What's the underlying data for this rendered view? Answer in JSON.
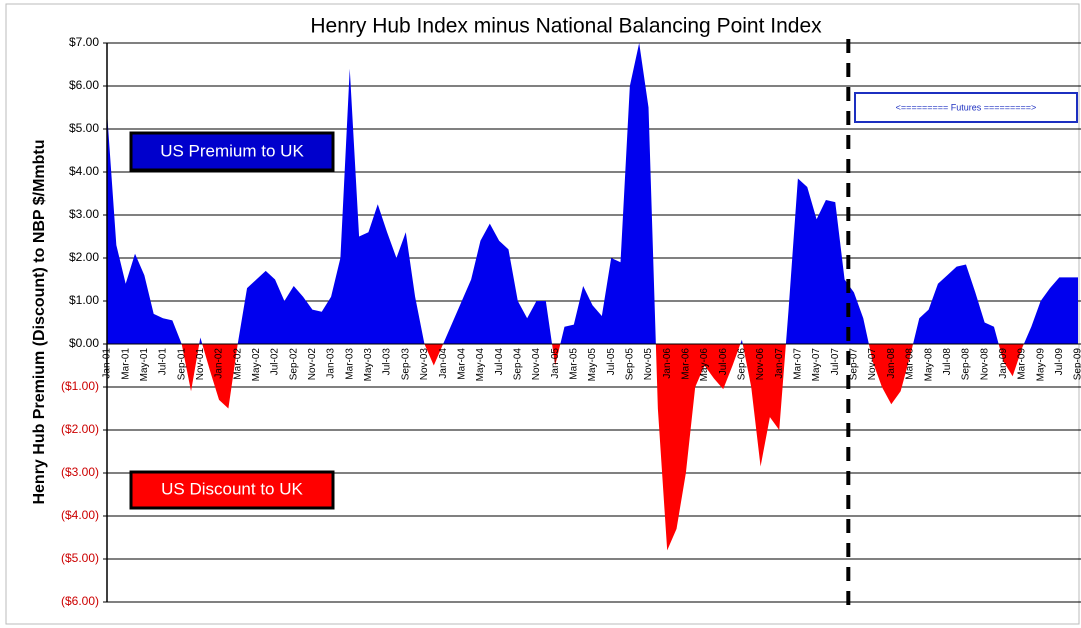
{
  "chart_data": {
    "type": "area",
    "title": "Henry Hub Index minus National Balancing Point Index",
    "y_label": "Henry Hub Premium (Discount) to NBP $/Mmbtu",
    "categories": [
      "Jan-01",
      null,
      "Mar-01",
      null,
      "May-01",
      null,
      "Jul-01",
      null,
      "Sep-01",
      null,
      "Nov-01",
      null,
      "Jan-02",
      null,
      "Mar-02",
      null,
      "May-02",
      null,
      "Jul-02",
      null,
      "Sep-02",
      null,
      "Nov-02",
      null,
      "Jan-03",
      null,
      "Mar-03",
      null,
      "May-03",
      null,
      "Jul-03",
      null,
      "Sep-03",
      null,
      "Nov-03",
      null,
      "Jan-04",
      null,
      "Mar-04",
      null,
      "May-04",
      null,
      "Jul-04",
      null,
      "Sep-04",
      null,
      "Nov-04",
      null,
      "Jan-05",
      null,
      "Mar-05",
      null,
      "May-05",
      null,
      "Jul-05",
      null,
      "Sep-05",
      null,
      "Nov-05",
      null,
      "Jan-06",
      null,
      "Mar-06",
      null,
      "May-06",
      null,
      "Jul-06",
      null,
      "Sep-06",
      null,
      "Nov-06",
      null,
      "Jan-07",
      null,
      "Mar-07",
      null,
      "May-07",
      null,
      "Jul-07",
      null,
      "Sep-07",
      null,
      "Nov-07",
      null,
      "Jan-08",
      null,
      "Mar-08",
      null,
      "May-08",
      null,
      "Jul-08",
      null,
      "Sep-08",
      null,
      "Nov-08",
      null,
      "Jan-09",
      null,
      "Mar-09",
      null,
      "May-09",
      null,
      "Jul-09",
      null,
      "Sep-09"
    ],
    "values": [
      5.4,
      2.3,
      1.4,
      2.1,
      1.6,
      0.7,
      0.6,
      0.55,
      0.0,
      -1.1,
      0.15,
      -0.6,
      -1.3,
      -1.5,
      0.0,
      1.3,
      1.5,
      1.7,
      1.5,
      1.0,
      1.35,
      1.1,
      0.8,
      0.75,
      1.1,
      2.0,
      6.4,
      2.5,
      2.6,
      3.25,
      2.6,
      2.0,
      2.6,
      1.1,
      0.0,
      -0.5,
      0.0,
      0.5,
      1.0,
      1.5,
      2.4,
      2.8,
      2.4,
      2.2,
      1.0,
      0.6,
      1.0,
      1.0,
      -0.5,
      0.4,
      0.45,
      1.35,
      0.9,
      0.65,
      2.0,
      1.9,
      6.0,
      7.0,
      5.5,
      -1.5,
      -4.8,
      -4.3,
      -3.0,
      -1.0,
      -0.5,
      -0.8,
      -1.05,
      -0.5,
      0.1,
      -1.0,
      -2.85,
      -1.7,
      -2.0,
      0.8,
      3.85,
      3.65,
      2.9,
      3.35,
      3.3,
      1.5,
      1.2,
      0.6,
      -0.4,
      -1.0,
      -1.4,
      -1.1,
      -0.3,
      0.6,
      0.8,
      1.4,
      1.6,
      1.8,
      1.85,
      1.2,
      0.5,
      0.4,
      -0.4,
      -0.75,
      -0.1,
      0.4,
      1.0,
      1.3,
      1.55,
      1.55,
      1.55
    ],
    "positive_color": "#0000ee",
    "negative_color": "#ff0000",
    "negative_label_color": "#cc0000",
    "ylim": [
      -6,
      7
    ],
    "yticks": [
      {
        "value": 7,
        "label": "$7.00"
      },
      {
        "value": 6,
        "label": "$6.00"
      },
      {
        "value": 5,
        "label": "$5.00"
      },
      {
        "value": 4,
        "label": "$4.00"
      },
      {
        "value": 3,
        "label": "$3.00"
      },
      {
        "value": 2,
        "label": "$2.00"
      },
      {
        "value": 1,
        "label": "$1.00"
      },
      {
        "value": 0,
        "label": "$0.00"
      },
      {
        "value": -1,
        "label": "($1.00)"
      },
      {
        "value": -2,
        "label": "($2.00)"
      },
      {
        "value": -3,
        "label": "($3.00)"
      },
      {
        "value": -4,
        "label": "($4.00)"
      },
      {
        "value": -5,
        "label": "($5.00)"
      },
      {
        "value": -6,
        "label": "($6.00)"
      }
    ],
    "grid": true,
    "futures_start": 79.4,
    "annotations": {
      "premium": "US Premium to UK",
      "discount": "US Discount to UK",
      "futures": "<========= Futures =========>"
    }
  }
}
